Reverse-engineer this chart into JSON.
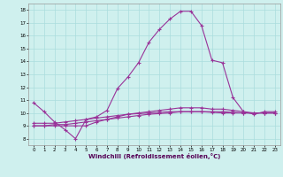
{
  "xlabel": "Windchill (Refroidissement éolien,°C)",
  "bg_color": "#cff0ee",
  "line_color": "#993399",
  "grid_color": "#aadddd",
  "xlim": [
    -0.5,
    23.5
  ],
  "ylim": [
    7.5,
    18.5
  ],
  "xticks": [
    0,
    1,
    2,
    3,
    4,
    5,
    6,
    7,
    8,
    9,
    10,
    11,
    12,
    13,
    14,
    15,
    16,
    17,
    18,
    19,
    20,
    21,
    22,
    23
  ],
  "yticks": [
    8,
    9,
    10,
    11,
    12,
    13,
    14,
    15,
    16,
    17,
    18
  ],
  "line1_x": [
    0,
    1,
    2,
    3,
    4,
    5,
    6,
    7,
    8,
    9,
    10,
    11,
    12,
    13,
    14,
    15,
    16,
    17,
    18,
    19,
    20,
    21,
    22,
    23
  ],
  "line1_y": [
    10.8,
    10.1,
    9.3,
    8.7,
    8.0,
    9.5,
    9.7,
    10.2,
    11.9,
    12.8,
    13.9,
    15.5,
    16.5,
    17.3,
    17.9,
    17.9,
    16.8,
    14.1,
    13.9,
    11.2,
    10.1,
    9.9,
    10.1,
    10.1
  ],
  "line2_x": [
    0,
    1,
    2,
    3,
    4,
    5,
    6,
    7,
    8,
    9,
    10,
    11,
    12,
    13,
    14,
    15,
    16,
    17,
    18,
    19,
    20,
    21,
    22,
    23
  ],
  "line2_y": [
    9.0,
    9.0,
    9.0,
    9.0,
    9.0,
    9.0,
    9.3,
    9.5,
    9.7,
    9.9,
    10.0,
    10.1,
    10.2,
    10.3,
    10.4,
    10.4,
    10.4,
    10.3,
    10.3,
    10.2,
    10.1,
    10.0,
    10.0,
    10.0
  ],
  "line3_x": [
    0,
    1,
    2,
    3,
    4,
    5,
    6,
    7,
    8,
    9,
    10,
    11,
    12,
    13,
    14,
    15,
    16,
    17,
    18,
    19,
    20,
    21,
    22,
    23
  ],
  "line3_y": [
    9.0,
    9.0,
    9.1,
    9.1,
    9.2,
    9.3,
    9.4,
    9.5,
    9.6,
    9.7,
    9.8,
    9.9,
    9.95,
    10.0,
    10.1,
    10.1,
    10.1,
    10.1,
    10.1,
    10.05,
    10.0,
    10.0,
    10.0,
    10.0
  ],
  "line4_x": [
    0,
    1,
    2,
    3,
    4,
    5,
    6,
    7,
    8,
    9,
    10,
    11,
    12,
    13,
    14,
    15,
    16,
    17,
    18,
    19,
    20,
    21,
    22,
    23
  ],
  "line4_y": [
    9.2,
    9.2,
    9.2,
    9.3,
    9.4,
    9.5,
    9.6,
    9.7,
    9.8,
    9.9,
    9.95,
    10.0,
    10.05,
    10.1,
    10.1,
    10.1,
    10.1,
    10.05,
    10.0,
    10.0,
    10.0,
    10.0,
    10.0,
    10.0
  ],
  "tick_fontsize": 4.0,
  "xlabel_fontsize": 5.0
}
